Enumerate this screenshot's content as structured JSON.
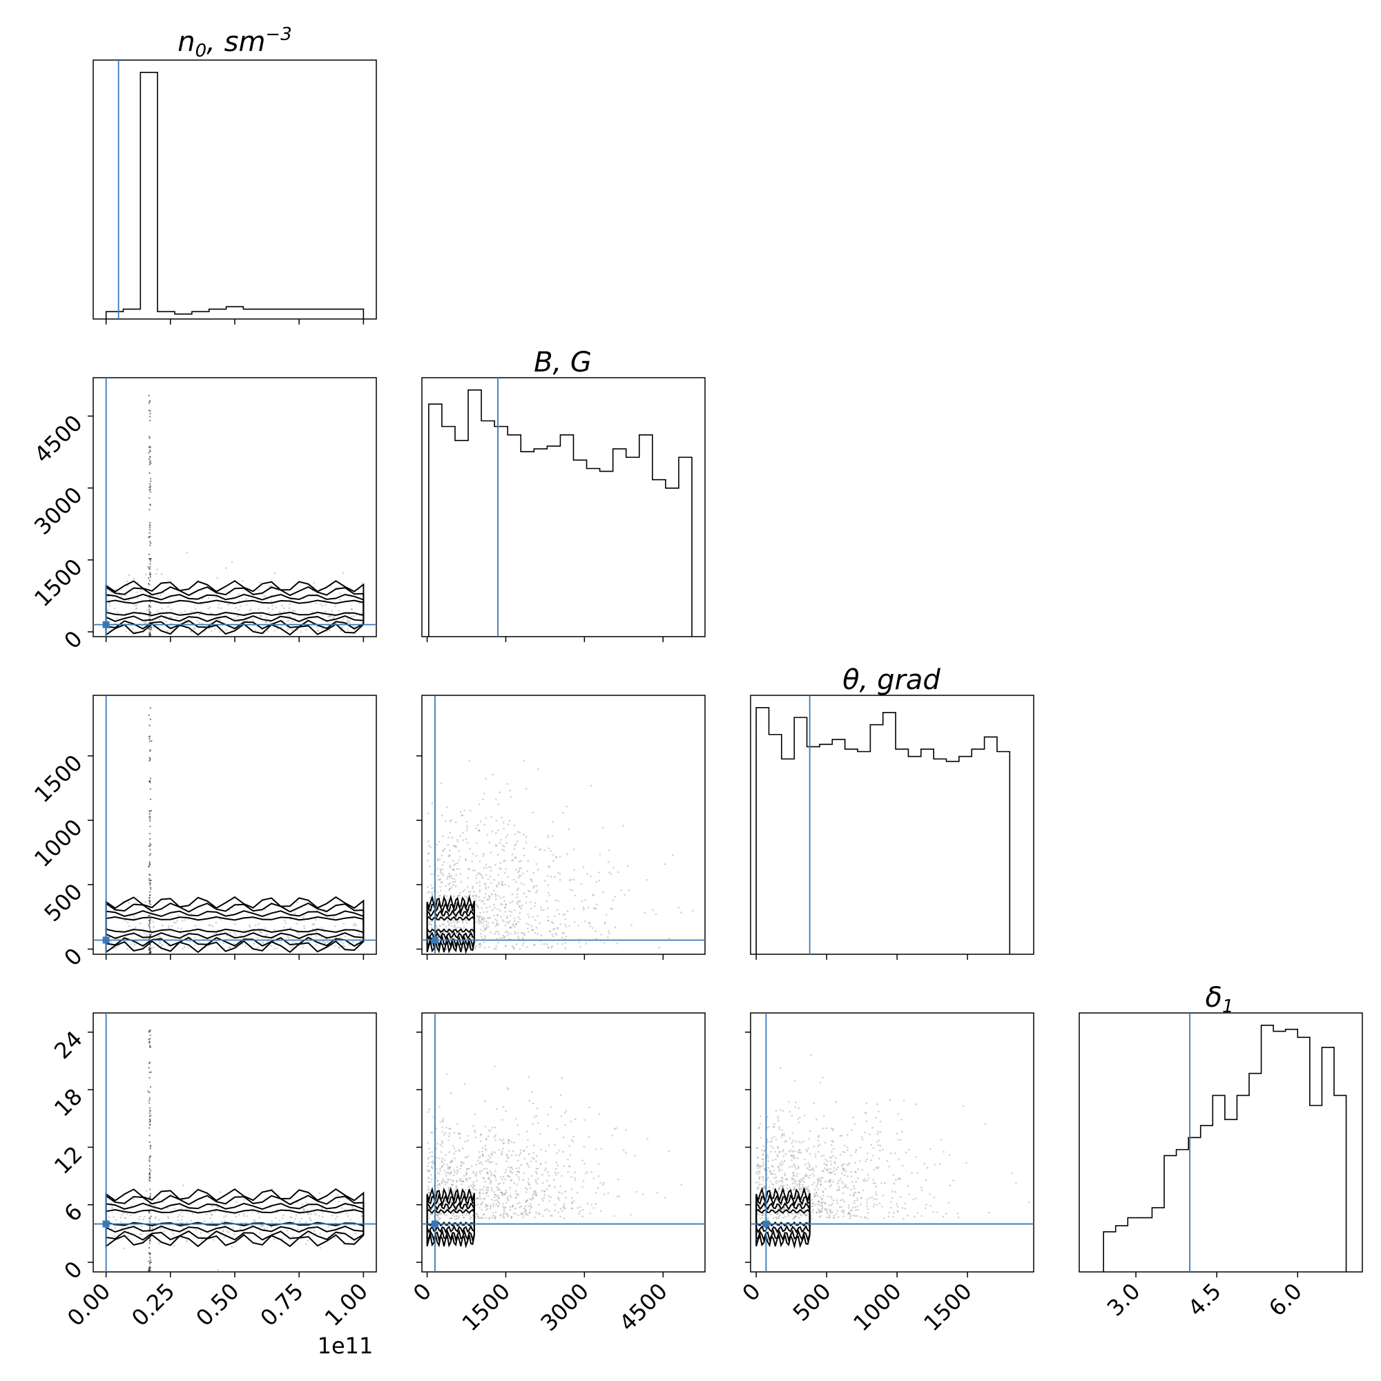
{
  "figure": {
    "type": "corner-plot",
    "truth_color": "#3a78b5",
    "line_color": "#000000",
    "scatter_color": "#9a9a9a"
  },
  "titles": {
    "n0_base": "n",
    "n0_sub": "0",
    "n0_rest": ", sm",
    "n0_sup": "−3",
    "B": "B, G",
    "theta": "θ, grad",
    "delta_base": "δ",
    "delta_sub": "1"
  },
  "offset_label": "1e11",
  "ticks": {
    "n0": [
      "0.00",
      "0.25",
      "0.50",
      "0.75",
      "1.00"
    ],
    "B": [
      "0",
      "1500",
      "3000",
      "4500"
    ],
    "theta": [
      "0",
      "500",
      "1000",
      "1500"
    ],
    "delta_y": [
      "0",
      "6",
      "12",
      "18",
      "24"
    ],
    "delta_x": [
      "3.0",
      "4.5",
      "6.0"
    ]
  },
  "chart_data": {
    "type": "corner",
    "parameters": [
      "n0",
      "B",
      "theta",
      "delta1"
    ],
    "truths": {
      "n0": 0.0,
      "B": 150,
      "theta": 70,
      "delta1": 4
    },
    "ranges": {
      "n0": [
        -0.05,
        1.05
      ],
      "B": [
        -100,
        5300
      ],
      "theta": [
        -40,
        1970
      ],
      "delta1": [
        -1,
        26
      ],
      "delta1_hist": [
        1.95,
        7.2
      ]
    },
    "histograms": {
      "n0": {
        "range": [
          0.0,
          1.0
        ],
        "counts": [
          3,
          4,
          100,
          3,
          2,
          3,
          4,
          5,
          4,
          4,
          4,
          4,
          4,
          4,
          4
        ]
      },
      "B": {
        "range": [
          30,
          5050
        ],
        "counts": [
          83,
          75,
          70,
          88,
          77,
          75,
          72,
          66,
          67,
          68,
          72,
          63,
          60,
          59,
          67,
          64,
          72,
          56,
          53,
          64
        ]
      },
      "theta": {
        "range": [
          0,
          1800
        ],
        "counts": [
          101,
          90,
          80,
          97,
          85,
          86,
          88,
          84,
          83,
          94,
          99,
          84,
          81,
          84,
          80,
          79,
          81,
          84,
          89,
          83
        ]
      },
      "delta1": {
        "range": [
          2.4,
          6.9
        ],
        "counts": [
          20,
          23,
          27,
          27,
          32,
          58,
          61,
          67,
          73,
          88,
          76,
          88,
          99,
          123,
          120,
          121,
          117,
          83,
          112,
          88
        ]
      }
    }
  }
}
